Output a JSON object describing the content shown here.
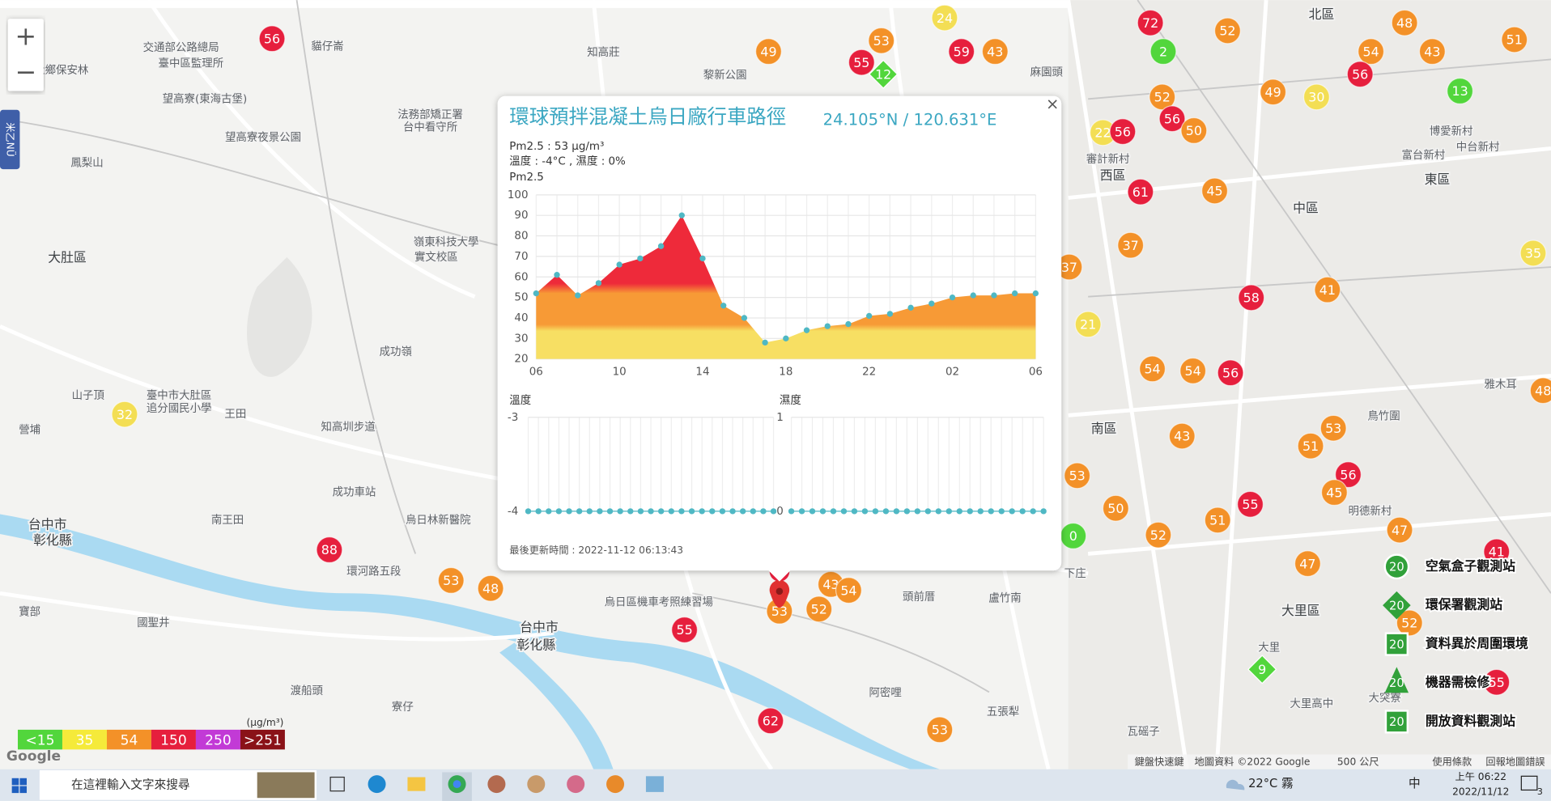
{
  "map": {
    "zoom_in": "+",
    "zoom_out": "−",
    "side_tab": "米乙NÜ",
    "logo": "Google",
    "places": [
      "交通部公路總局",
      "臺中區監理所",
      "貓仔崙",
      "社鄉保安林",
      "知高莊",
      "黎新公園",
      "望高寮(東海古堡)",
      "法務部矯正署",
      "台中看守所",
      "望高寮夜景公園",
      "鳳梨山",
      "大肚區",
      "嶺東科技大學",
      "實文校區",
      "成功嶺",
      "山子頂",
      "臺中市大肚區",
      "追分國民小學",
      "王田",
      "營埔",
      "知高圳步道",
      "成功車站",
      "南王田",
      "台中市",
      "彰化縣",
      "烏日林新醫院",
      "環河路五段",
      "寶部",
      "國聖井",
      "渡船頭",
      "寮仔",
      "台中市",
      "彰化縣",
      "烏日區機車考照練習場",
      "頭前厝",
      "盧竹南",
      "阿密哩",
      "五張犁",
      "瓦磘子",
      "大里區",
      "大里",
      "大突寮",
      "大里高中",
      "南區",
      "西區",
      "中區",
      "東區",
      "北區",
      "審計新村",
      "麻園頭",
      "博愛新村",
      "富台新村",
      "中台新村",
      "鳥竹圍",
      "雅木耳",
      "明德新村",
      "下庄"
    ],
    "markers": [
      {
        "value": 56,
        "color": "#e61f3d"
      },
      {
        "value": 49,
        "color": "#f39128"
      },
      {
        "value": 53,
        "color": "#f39128"
      },
      {
        "value": 55,
        "color": "#e61f3d"
      },
      {
        "value": 12,
        "color": "#52d63c"
      },
      {
        "value": 24,
        "color": "#f3de54"
      },
      {
        "value": 59,
        "color": "#e61f3d"
      },
      {
        "value": 43,
        "color": "#f39128"
      },
      {
        "value": 72,
        "color": "#e61f3d"
      },
      {
        "value": 2,
        "color": "#52d63c"
      },
      {
        "value": 52,
        "color": "#f39128"
      },
      {
        "value": 48,
        "color": "#f39128"
      },
      {
        "value": 54,
        "color": "#f39128"
      },
      {
        "value": 43,
        "color": "#f39128"
      },
      {
        "value": 51,
        "color": "#f39128"
      },
      {
        "value": 56,
        "color": "#e61f3d"
      },
      {
        "value": 13,
        "color": "#52d63c"
      },
      {
        "value": 49,
        "color": "#f39128"
      },
      {
        "value": 30,
        "color": "#f3de54"
      },
      {
        "value": 52,
        "color": "#f39128"
      },
      {
        "value": 56,
        "color": "#e61f3d"
      },
      {
        "value": 50,
        "color": "#f39128"
      },
      {
        "value": 22,
        "color": "#f3de54"
      },
      {
        "value": 56,
        "color": "#e61f3d"
      },
      {
        "value": 61,
        "color": "#e61f3d"
      },
      {
        "value": 45,
        "color": "#f39128"
      },
      {
        "value": 37,
        "color": "#f39128"
      },
      {
        "value": 37,
        "color": "#f39128"
      },
      {
        "value": 58,
        "color": "#e61f3d"
      },
      {
        "value": 41,
        "color": "#f39128"
      },
      {
        "value": 35,
        "color": "#f3de54"
      },
      {
        "value": 21,
        "color": "#f3de54"
      },
      {
        "value": 54,
        "color": "#f39128"
      },
      {
        "value": 54,
        "color": "#f39128"
      },
      {
        "value": 56,
        "color": "#e61f3d"
      },
      {
        "value": 43,
        "color": "#f39128"
      },
      {
        "value": 53,
        "color": "#f39128"
      },
      {
        "value": 51,
        "color": "#f39128"
      },
      {
        "value": 56,
        "color": "#e61f3d"
      },
      {
        "value": 45,
        "color": "#f39128"
      },
      {
        "value": 53,
        "color": "#f39128"
      },
      {
        "value": 55,
        "color": "#e61f3d"
      },
      {
        "value": 50,
        "color": "#f39128"
      },
      {
        "value": 51,
        "color": "#f39128"
      },
      {
        "value": 52,
        "color": "#f39128"
      },
      {
        "value": 47,
        "color": "#f39128"
      },
      {
        "value": 0,
        "color": "#52d63c"
      },
      {
        "value": 41,
        "color": "#e61f3d"
      },
      {
        "value": 47,
        "color": "#f39128"
      },
      {
        "value": 52,
        "color": "#f39128"
      },
      {
        "value": 9,
        "color": "#52d63c"
      },
      {
        "value": 55,
        "color": "#e61f3d"
      },
      {
        "value": 48,
        "color": "#f39128"
      },
      {
        "value": 32,
        "color": "#f3de54"
      },
      {
        "value": 88,
        "color": "#e61f3d"
      },
      {
        "value": 53,
        "color": "#f39128"
      },
      {
        "value": 48,
        "color": "#f39128"
      },
      {
        "value": 55,
        "color": "#e61f3d"
      },
      {
        "value": 53,
        "color": "#f39128"
      },
      {
        "value": 52,
        "color": "#f39128"
      },
      {
        "value": 43,
        "color": "#f39128"
      },
      {
        "value": 54,
        "color": "#f39128"
      },
      {
        "value": 62,
        "color": "#e61f3d"
      },
      {
        "value": 53,
        "color": "#f39128"
      }
    ],
    "station_legend": [
      {
        "icon_label": "20",
        "label": "空氣盒子觀測站"
      },
      {
        "icon_label": "20",
        "label": "環保署觀測站"
      },
      {
        "icon_label": "20",
        "label": "資料異於周圍環境"
      },
      {
        "icon_label": "20",
        "label": "機器需檢修"
      },
      {
        "icon_label": "20",
        "label": "開放資料觀測站"
      }
    ],
    "pm_legend": {
      "unit": "(μg/m³)",
      "items": [
        {
          "label": "<15",
          "color": "#52d63c"
        },
        {
          "label": "35",
          "color": "#f5ea3a"
        },
        {
          "label": "54",
          "color": "#f39128"
        },
        {
          "label": "150",
          "color": "#e61f3d"
        },
        {
          "label": "250",
          "color": "#c23ad6"
        },
        {
          "label": ">251",
          "color": "#8a1218"
        }
      ]
    },
    "attribution": [
      "鍵盤快速鍵",
      "地圖資料 ©2022 Google",
      "500 公尺",
      "使用條款",
      "回報地圖錯誤"
    ]
  },
  "popup": {
    "close": "×",
    "title": "環球預拌混凝土烏日廠行車路徑",
    "coords": "24.105°N / 120.631°E",
    "pm_text": "Pm2.5 : 53 μg/m³",
    "weather_text": "溫度 : -4°C , 濕度 : 0%",
    "updated": "最後更新時間 : 2022-11-12 06:13:43"
  },
  "chart_data": [
    {
      "type": "area",
      "title": "Pm2.5",
      "categories": [
        "06",
        null,
        null,
        null,
        "10",
        null,
        null,
        null,
        "14",
        null,
        null,
        null,
        "18",
        null,
        null,
        null,
        "22",
        null,
        null,
        null,
        "02",
        null,
        null,
        null,
        "06"
      ],
      "values": [
        52,
        61,
        51,
        57,
        66,
        69,
        75,
        90,
        69,
        46,
        40,
        28,
        30,
        34,
        36,
        37,
        41,
        42,
        45,
        47,
        50,
        51,
        51,
        52,
        52
      ],
      "color": "#4fb8c4",
      "ylim": [
        20,
        100
      ],
      "yticks": [
        20,
        30,
        40,
        50,
        60,
        70,
        80,
        90,
        100
      ],
      "grid": true
    },
    {
      "type": "line",
      "title": "溫度",
      "categories": [
        null,
        null,
        null,
        null,
        null,
        null,
        null,
        null,
        null,
        null,
        null,
        null,
        null,
        null,
        null,
        null,
        null,
        null,
        null,
        null,
        null,
        null,
        null,
        null,
        null
      ],
      "values": [
        -4,
        -4,
        -4,
        -4,
        -4,
        -4,
        -4,
        -4,
        -4,
        -4,
        -4,
        -4,
        -4,
        -4,
        -4,
        -4,
        -4,
        -4,
        -4,
        -4,
        -4,
        -4,
        -4,
        -4,
        -4
      ],
      "color": "#4fb8c4",
      "ylim": [
        -4,
        -3
      ],
      "yticks": [
        -4,
        -3
      ],
      "grid": true
    },
    {
      "type": "line",
      "title": "濕度",
      "categories": [
        null,
        null,
        null,
        null,
        null,
        null,
        null,
        null,
        null,
        null,
        null,
        null,
        null,
        null,
        null,
        null,
        null,
        null,
        null,
        null,
        null,
        null,
        null,
        null,
        null
      ],
      "values": [
        0,
        0,
        0,
        0,
        0,
        0,
        0,
        0,
        0,
        0,
        0,
        0,
        0,
        0,
        0,
        0,
        0,
        0,
        0,
        0,
        0,
        0,
        0,
        0,
        0
      ],
      "color": "#4fb8c4",
      "ylim": [
        0,
        1
      ],
      "yticks": [
        0,
        1
      ],
      "grid": true
    }
  ],
  "taskbar": {
    "search": "在這裡輸入文字來搜尋",
    "weather": "22°C 霧",
    "ime": "中",
    "time": "上午 06:22",
    "date": "2022/11/12",
    "notifications": "3"
  }
}
